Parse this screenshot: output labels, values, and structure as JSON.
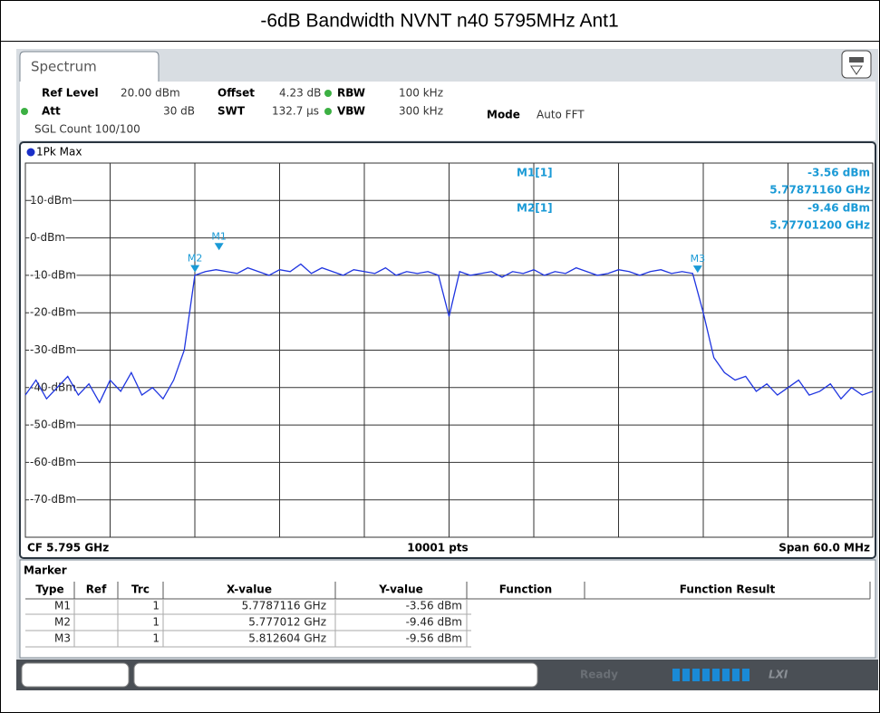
{
  "window_title": "-6dB Bandwidth NVNT n40 5795MHz Ant1",
  "tab": "Spectrum",
  "settings": [
    {
      "label": "Ref Level",
      "value": "20.00 dBm"
    },
    {
      "label": "Offset",
      "value": "4.23 dB"
    },
    {
      "label": "RBW",
      "value": "100 kHz"
    },
    {
      "label": "Att",
      "value": "30 dB"
    },
    {
      "label": "SWT",
      "value": "132.7 µs"
    },
    {
      "label": "VBW",
      "value": "300 kHz"
    },
    {
      "label": "Mode",
      "value": "Auto FFT"
    }
  ],
  "sgl_count": "SGL Count 100/100",
  "trace_label": "1Pk Max",
  "chart_data": {
    "type": "line",
    "color": "#1f35e0",
    "xlim": [
      5.765,
      5.825
    ],
    "ylim": [
      -80,
      20
    ],
    "yticks": [
      {
        "value": 10,
        "label": "10 dBm"
      },
      {
        "value": 0,
        "label": "0 dBm"
      },
      {
        "value": -10,
        "label": "-10 dBm"
      },
      {
        "value": -20,
        "label": "-20 dBm"
      },
      {
        "value": -30,
        "label": "-30 dBm"
      },
      {
        "value": -40,
        "label": "-40 dBm"
      },
      {
        "value": -50,
        "label": "-50 dBm"
      },
      {
        "value": -60,
        "label": "-60 dBm"
      },
      {
        "value": -70,
        "label": "-70 dBm"
      }
    ],
    "xgrid": [
      5.771,
      5.777,
      5.783,
      5.789,
      5.795,
      5.801,
      5.807,
      5.813,
      5.819
    ],
    "grid": true,
    "x": [
      5.765,
      5.76575,
      5.7665,
      5.76725,
      5.768,
      5.76875,
      5.7695,
      5.77025,
      5.771,
      5.77175,
      5.7725,
      5.77325,
      5.774,
      5.77475,
      5.7755,
      5.77625,
      5.777,
      5.77775,
      5.7785,
      5.77925,
      5.78,
      5.78075,
      5.7815,
      5.78225,
      5.783,
      5.78375,
      5.7845,
      5.78525,
      5.786,
      5.78675,
      5.7875,
      5.78825,
      5.789,
      5.78975,
      5.7905,
      5.79125,
      5.792,
      5.79275,
      5.7935,
      5.79425,
      5.795,
      5.79575,
      5.7965,
      5.79725,
      5.798,
      5.79875,
      5.7995,
      5.80025,
      5.801,
      5.80175,
      5.8025,
      5.80325,
      5.804,
      5.80475,
      5.8055,
      5.80625,
      5.807,
      5.80775,
      5.8085,
      5.80925,
      5.81,
      5.81075,
      5.8115,
      5.81225,
      5.813,
      5.81375,
      5.8145,
      5.81525,
      5.816,
      5.81675,
      5.8175,
      5.81825,
      5.819,
      5.81975,
      5.8205,
      5.82125,
      5.822,
      5.82275,
      5.8235,
      5.82425,
      5.825
    ],
    "values": [
      -42,
      -38,
      -43,
      -40,
      -37,
      -42,
      -39,
      -44,
      -38,
      -41,
      -36,
      -42,
      -40,
      -43,
      -38,
      -30,
      -10,
      -9,
      -8.5,
      -9,
      -9.5,
      -8,
      -9,
      -10,
      -8.5,
      -9,
      -7,
      -9.5,
      -8,
      -9,
      -10,
      -8.5,
      -9,
      -9.5,
      -8,
      -10,
      -9,
      -9.5,
      -9,
      -10,
      -21,
      -9,
      -10,
      -9.5,
      -9,
      -10.5,
      -9,
      -9.5,
      -8.5,
      -10,
      -9,
      -9.5,
      -8,
      -9,
      -10,
      -9.5,
      -8.5,
      -9,
      -10,
      -9,
      -8.5,
      -9.5,
      -9,
      -9.5,
      -20,
      -32,
      -36,
      -38,
      -37,
      -41,
      -39,
      -42,
      -40,
      -38,
      -42,
      -41,
      -39,
      -43,
      -40,
      -42,
      -41
    ],
    "markers": [
      {
        "name": "M1",
        "x": 5.7787116,
        "y": -3.56
      },
      {
        "name": "M2",
        "x": 5.777012,
        "y": -9.46
      },
      {
        "name": "M3",
        "x": 5.812604,
        "y": -9.56
      }
    ],
    "readout": [
      {
        "label": "M1[1]",
        "value": "-3.56 dBm",
        "freq": "5.77871160 GHz"
      },
      {
        "label": "M2[1]",
        "value": "-9.46 dBm",
        "freq": "5.77701200 GHz"
      }
    ],
    "footer": {
      "center_freq": "CF 5.795 GHz",
      "points": "10001 pts",
      "span": "Span 60.0 MHz"
    }
  },
  "marker_table": {
    "title": "Marker",
    "columns": [
      "Type",
      "Ref",
      "Trc",
      "X-value",
      "Y-value",
      "Function",
      "Function Result"
    ],
    "rows": [
      {
        "type": "M1",
        "trc": 1,
        "x": "5.7787116 GHz",
        "y": "-3.56 dBm"
      },
      {
        "type": "M2",
        "trc": 1,
        "x": "5.777012 GHz",
        "y": "-9.46 dBm"
      },
      {
        "type": "M3",
        "trc": 1,
        "x": "5.812604 GHz",
        "y": "-9.56 dBm"
      }
    ]
  },
  "status": "Ready",
  "lxi": "LXI"
}
